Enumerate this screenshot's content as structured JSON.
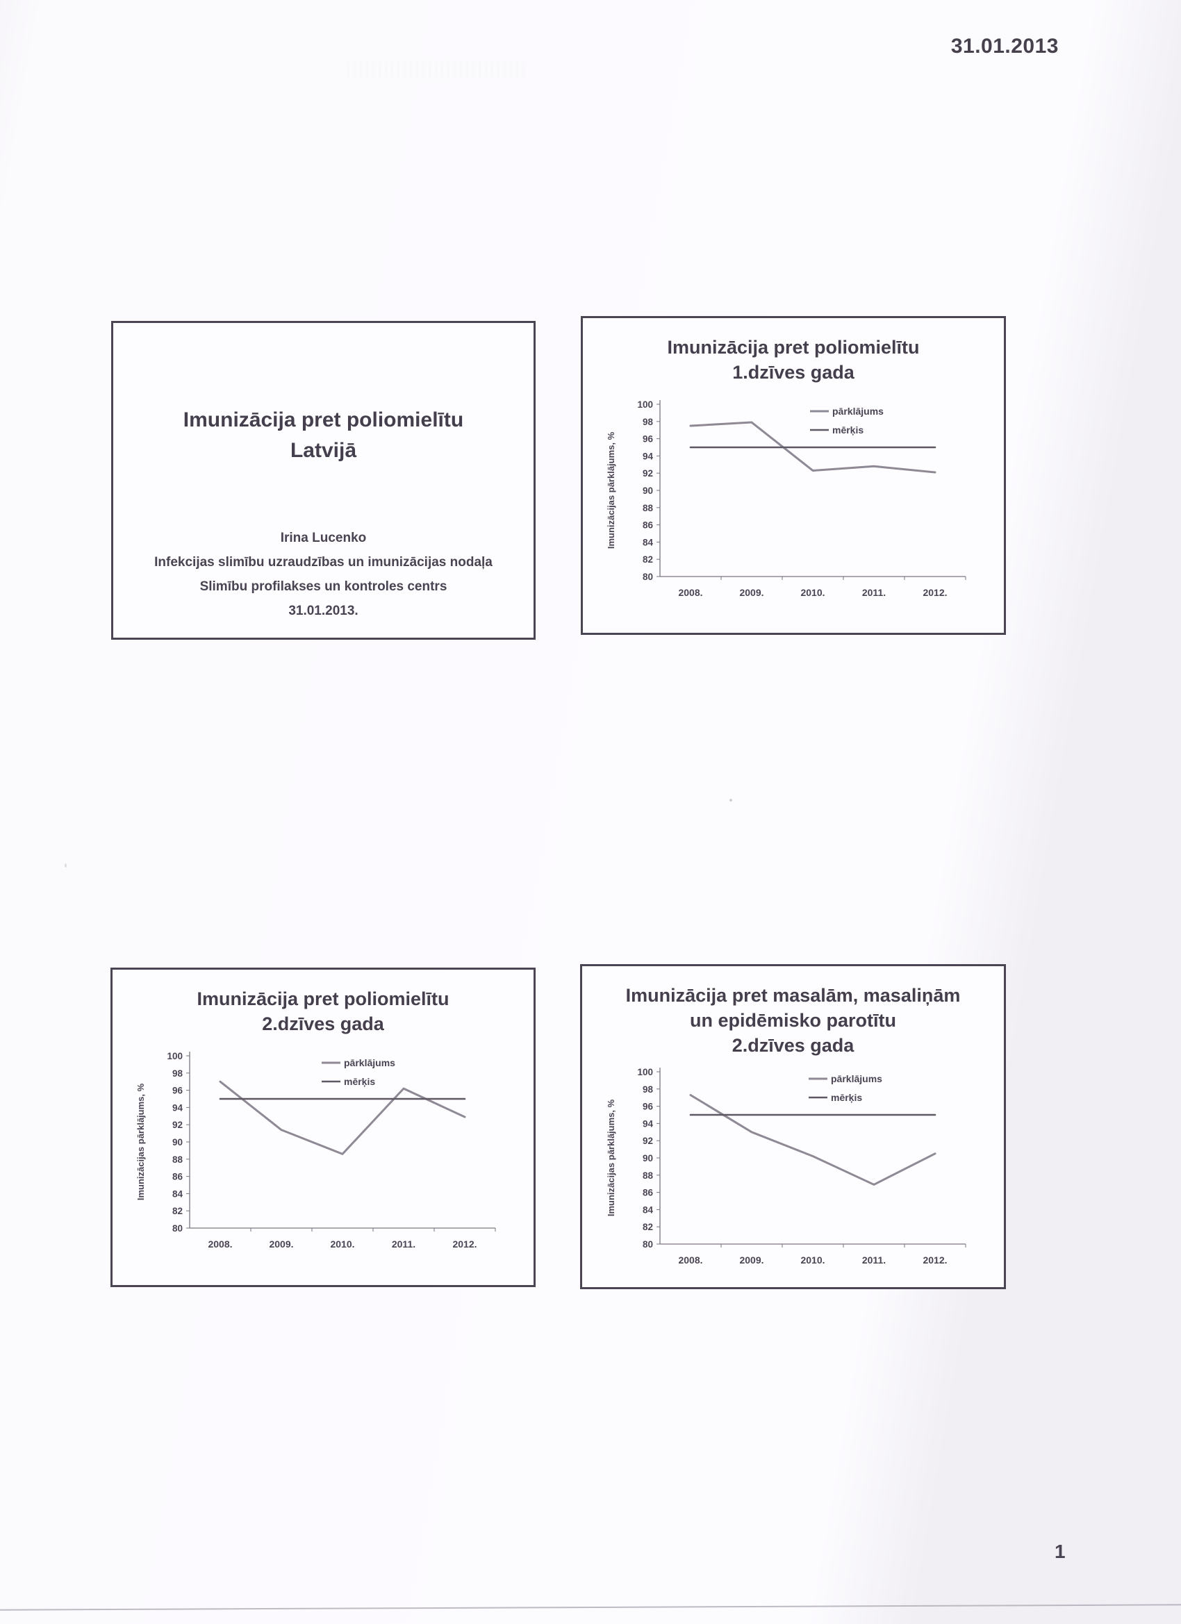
{
  "page": {
    "date": "31.01.2013",
    "page_number": "1"
  },
  "colors": {
    "paper": "#fdfcfe",
    "slide_border": "#4b4453",
    "text": "#453e4c",
    "coverage_line": "#8e8994",
    "target_line": "#5e5864",
    "axis": "#7b7481"
  },
  "title_slide": {
    "title_lines": [
      "Imunizācija pret poliomielītu",
      "Latvijā"
    ],
    "author": "Irina Lucenko",
    "department": "Infekcijas slimību uzraudzības un imunizācijas nodaļa",
    "organization": "Slimību profilakses un kontroles centrs",
    "date": "31.01.2013."
  },
  "chart_data": [
    {
      "type": "line",
      "title": "Imunizācija pret poliomielītu 1.dzīves gada",
      "title_lines": [
        "Imunizācija pret poliomielītu",
        "1.dzīves gada"
      ],
      "categories": [
        "2008.",
        "2009.",
        "2010.",
        "2011.",
        "2012."
      ],
      "series": [
        {
          "name": "pārklājums",
          "values": [
            97.5,
            97.9,
            92.3,
            92.8,
            92.1
          ],
          "color": "#8e8994"
        },
        {
          "name": "mērķis",
          "values": [
            95,
            95,
            95,
            95,
            95
          ],
          "color": "#5e5864"
        }
      ],
      "xlabel": "",
      "ylabel": "Imunizācijas pārklājums, %",
      "ylim": [
        80,
        100
      ],
      "ytick_step": 2,
      "grid": false,
      "legend_position": "upper-right"
    },
    {
      "type": "line",
      "title": "Imunizācija pret poliomielītu 2.dzīves gada",
      "title_lines": [
        "Imunizācija pret poliomielītu",
        "2.dzīves gada"
      ],
      "categories": [
        "2008.",
        "2009.",
        "2010.",
        "2011.",
        "2012."
      ],
      "series": [
        {
          "name": "pārklājums",
          "values": [
            97.0,
            91.4,
            88.6,
            96.2,
            92.9
          ],
          "color": "#8e8994"
        },
        {
          "name": "mērķis",
          "values": [
            95,
            95,
            95,
            95,
            95
          ],
          "color": "#5e5864"
        }
      ],
      "xlabel": "",
      "ylabel": "Imunizācijas pārklājums, %",
      "ylim": [
        80,
        100
      ],
      "ytick_step": 2,
      "grid": false,
      "legend_position": "upper-right"
    },
    {
      "type": "line",
      "title": "Imunizācija pret masalām, masaliņām un epidēmisko parotītu 2.dzīves gada",
      "title_lines": [
        "Imunizācija pret masalām, masaliņām",
        "un epidēmisko parotītu",
        "2.dzīves gada"
      ],
      "categories": [
        "2008.",
        "2009.",
        "2010.",
        "2011.",
        "2012."
      ],
      "series": [
        {
          "name": "pārklājums",
          "values": [
            97.3,
            93.0,
            90.2,
            86.9,
            90.5
          ],
          "color": "#8e8994"
        },
        {
          "name": "mērķis",
          "values": [
            95,
            95,
            95,
            95,
            95
          ],
          "color": "#5e5864"
        }
      ],
      "xlabel": "",
      "ylabel": "Imunizācijas pārklājums, %",
      "ylim": [
        80,
        100
      ],
      "ytick_step": 2,
      "grid": false,
      "legend_position": "upper-right"
    }
  ]
}
